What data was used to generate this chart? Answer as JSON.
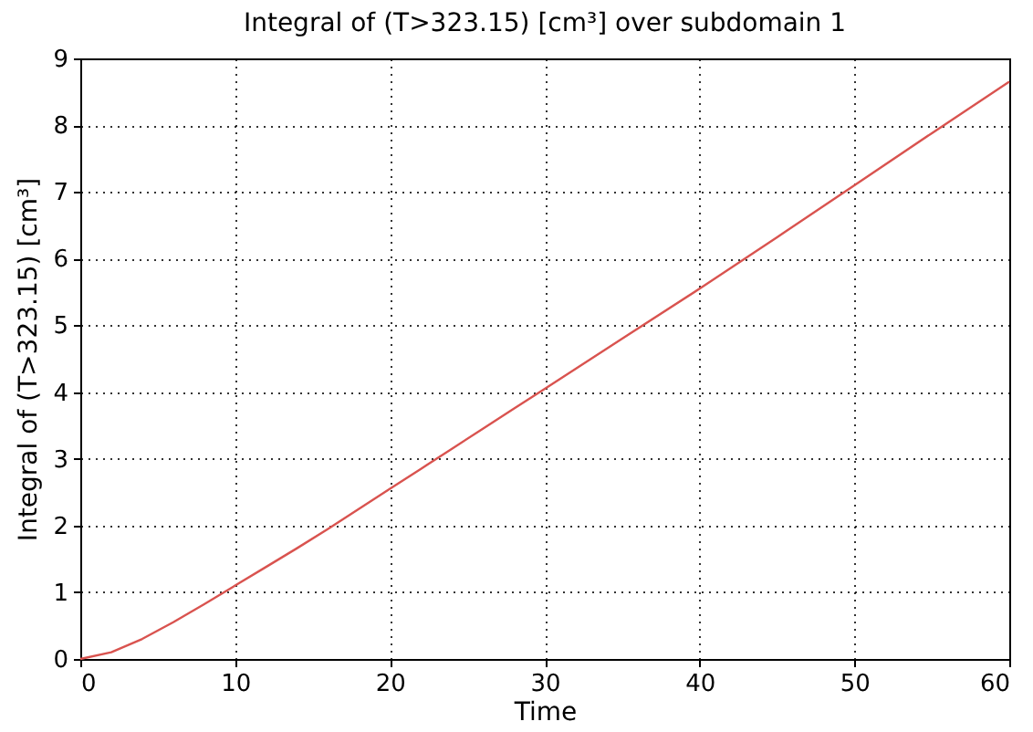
{
  "chart_data": {
    "type": "line",
    "title": "Integral of (T>323.15) [cm³] over subdomain 1",
    "xlabel": "Time",
    "ylabel": "Integral of (T>323.15) [cm³]",
    "x": [
      0,
      2,
      4,
      6,
      8,
      10,
      12,
      14,
      16,
      18,
      20,
      22,
      24,
      26,
      28,
      30,
      35,
      40,
      45,
      50,
      55,
      60
    ],
    "series": [
      {
        "color": "#d9534f",
        "values": [
          0,
          0.1,
          0.3,
          0.55,
          0.82,
          1.1,
          1.38,
          1.66,
          1.95,
          2.25,
          2.55,
          2.85,
          3.15,
          3.45,
          3.75,
          4.05,
          4.8,
          5.55,
          6.32,
          7.1,
          7.88,
          8.65
        ]
      }
    ],
    "xlim": [
      0,
      60
    ],
    "xticks": [
      0,
      10,
      20,
      30,
      40,
      50,
      60
    ],
    "ylim": [
      0,
      9
    ],
    "yticks": [
      0,
      1,
      2,
      3,
      4,
      5,
      6,
      7,
      8,
      9
    ],
    "grid": true,
    "marker": "none",
    "line_style": "solid"
  }
}
